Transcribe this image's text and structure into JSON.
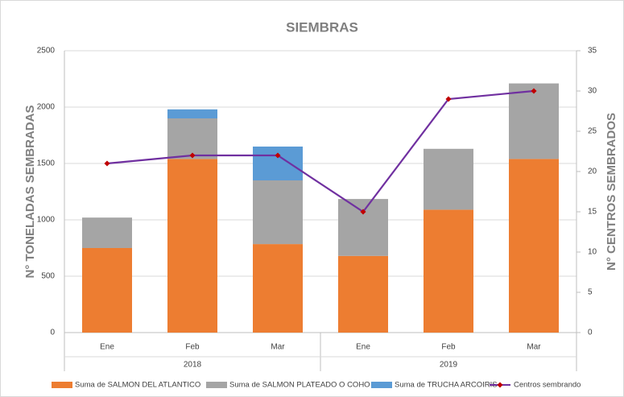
{
  "chart_data": {
    "type": "bar",
    "stacked": true,
    "title": "SIEMBRAS",
    "y_label": "N° TONELADAS SEMBRADAS",
    "y2_label": "N° CENTROS SEMBRADOS",
    "categories": [
      "Ene",
      "Feb",
      "Mar",
      "Ene",
      "Feb",
      "Mar"
    ],
    "category_groups": [
      {
        "name": "2018",
        "span": 3
      },
      {
        "name": "2019",
        "span": 3
      }
    ],
    "series": [
      {
        "name": "Suma de SALMON DEL ATLANTICO",
        "color": "#ed7d31",
        "values": [
          750,
          1540,
          785,
          680,
          1090,
          1540
        ]
      },
      {
        "name": "Suma de SALMON PLATEADO O COHO",
        "color": "#a5a5a5",
        "values": [
          270,
          360,
          565,
          505,
          540,
          670
        ]
      },
      {
        "name": "Suma de TRUCHA ARCOIRIS",
        "color": "#5b9bd5",
        "values": [
          0,
          80,
          300,
          0,
          0,
          0
        ]
      },
      {
        "name": "Centros sembrando",
        "color": "#7030a0",
        "type": "line",
        "axis": "y2",
        "values": [
          21,
          22,
          22,
          15,
          29,
          30
        ]
      }
    ],
    "ylim": [
      0,
      2500
    ],
    "yticks": [
      0,
      500,
      1000,
      1500,
      2000,
      2500
    ],
    "y2lim": [
      0,
      35
    ],
    "y2ticks": [
      0,
      5,
      10,
      15,
      20,
      25,
      30,
      35
    ],
    "grid": true,
    "legend": "bottom"
  }
}
